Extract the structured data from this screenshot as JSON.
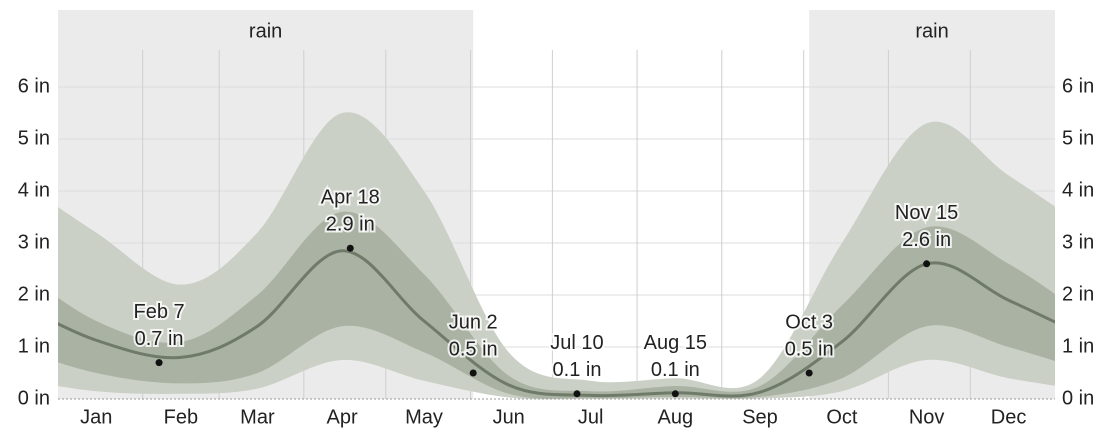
{
  "chart_data": {
    "type": "band-line",
    "categories": [
      "Jan",
      "Feb",
      "Mar",
      "Apr",
      "May",
      "Jun",
      "Jul",
      "Aug",
      "Sep",
      "Oct",
      "Nov",
      "Dec"
    ],
    "median": {
      "color": "#6f7b68",
      "values": [
        1.13,
        0.8,
        1.4,
        2.85,
        1.5,
        0.27,
        0.07,
        0.12,
        0.13,
        1.1,
        2.6,
        1.9
      ]
    },
    "band_inner": {
      "color": "#a9b2a3",
      "low": [
        0.5,
        0.3,
        0.5,
        1.4,
        0.9,
        0.1,
        0.02,
        0.04,
        0.04,
        0.4,
        1.4,
        1.0
      ],
      "high": [
        1.5,
        1.1,
        2.0,
        3.6,
        2.4,
        0.45,
        0.15,
        0.25,
        0.25,
        1.8,
        3.3,
        2.6
      ]
    },
    "band_outer": {
      "color": "#cad0c5",
      "low": [
        0.15,
        0.1,
        0.2,
        0.75,
        0.35,
        0.03,
        0,
        0.01,
        0.01,
        0.15,
        0.75,
        0.4
      ],
      "high": [
        3.2,
        2.2,
        3.2,
        5.5,
        4.0,
        0.9,
        0.35,
        0.4,
        0.4,
        3.0,
        5.3,
        4.3
      ]
    },
    "ylim": [
      0,
      6.8
    ],
    "yticks": [
      {
        "value": 0,
        "label": "0 in"
      },
      {
        "value": 1,
        "label": "1 in"
      },
      {
        "value": 2,
        "label": "2 in"
      },
      {
        "value": 3,
        "label": "3 in"
      },
      {
        "value": 4,
        "label": "4 in"
      },
      {
        "value": 5,
        "label": "5 in"
      },
      {
        "value": 6,
        "label": "6 in"
      }
    ],
    "grid": true,
    "annotations": [
      {
        "date": "Feb 7",
        "value": 0.7,
        "label": "0.7 in"
      },
      {
        "date": "Apr 18",
        "value": 2.9,
        "label": "2.9 in"
      },
      {
        "date": "Jun 2",
        "value": 0.5,
        "label": "0.5 in"
      },
      {
        "date": "Jul 10",
        "value": 0.1,
        "label": "0.1 in"
      },
      {
        "date": "Aug 15",
        "value": 0.1,
        "label": "0.1 in"
      },
      {
        "date": "Oct 3",
        "value": 0.5,
        "label": "0.5 in"
      },
      {
        "date": "Nov 15",
        "value": 2.6,
        "label": "2.6 in"
      }
    ],
    "seasons": [
      {
        "label": "rain",
        "until": "Jun 2"
      },
      {
        "label": "rain",
        "from": "Oct 3"
      }
    ],
    "season_color": "#ebebeb"
  }
}
